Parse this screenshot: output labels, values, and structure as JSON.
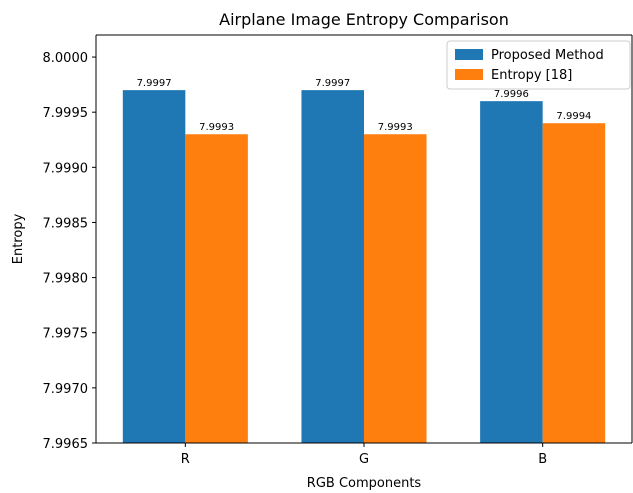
{
  "chart_data": {
    "type": "bar",
    "title": "Airplane Image Entropy Comparison",
    "xlabel": "RGB Components",
    "ylabel": "Entropy",
    "categories": [
      "R",
      "G",
      "B"
    ],
    "series": [
      {
        "name": "Proposed Method",
        "color": "#1f77b4",
        "values": [
          7.9997,
          7.9997,
          7.9996
        ],
        "labels": [
          "7.9997",
          "7.9997",
          "7.9996"
        ]
      },
      {
        "name": "Entropy [18]",
        "color": "#ff7f0e",
        "values": [
          7.9993,
          7.9993,
          7.9994
        ],
        "labels": [
          "7.9993",
          "7.9993",
          "7.9994"
        ]
      }
    ],
    "ylim": [
      7.9965,
      8.0002
    ],
    "yticks": [
      7.9965,
      7.997,
      7.9975,
      7.998,
      7.9985,
      7.999,
      7.9995,
      8.0
    ],
    "ytick_labels": [
      "7.9965",
      "7.9970",
      "7.9975",
      "7.9980",
      "7.9985",
      "7.9990",
      "7.9995",
      "8.0000"
    ],
    "grid": false,
    "legend_position": "top-right"
  }
}
